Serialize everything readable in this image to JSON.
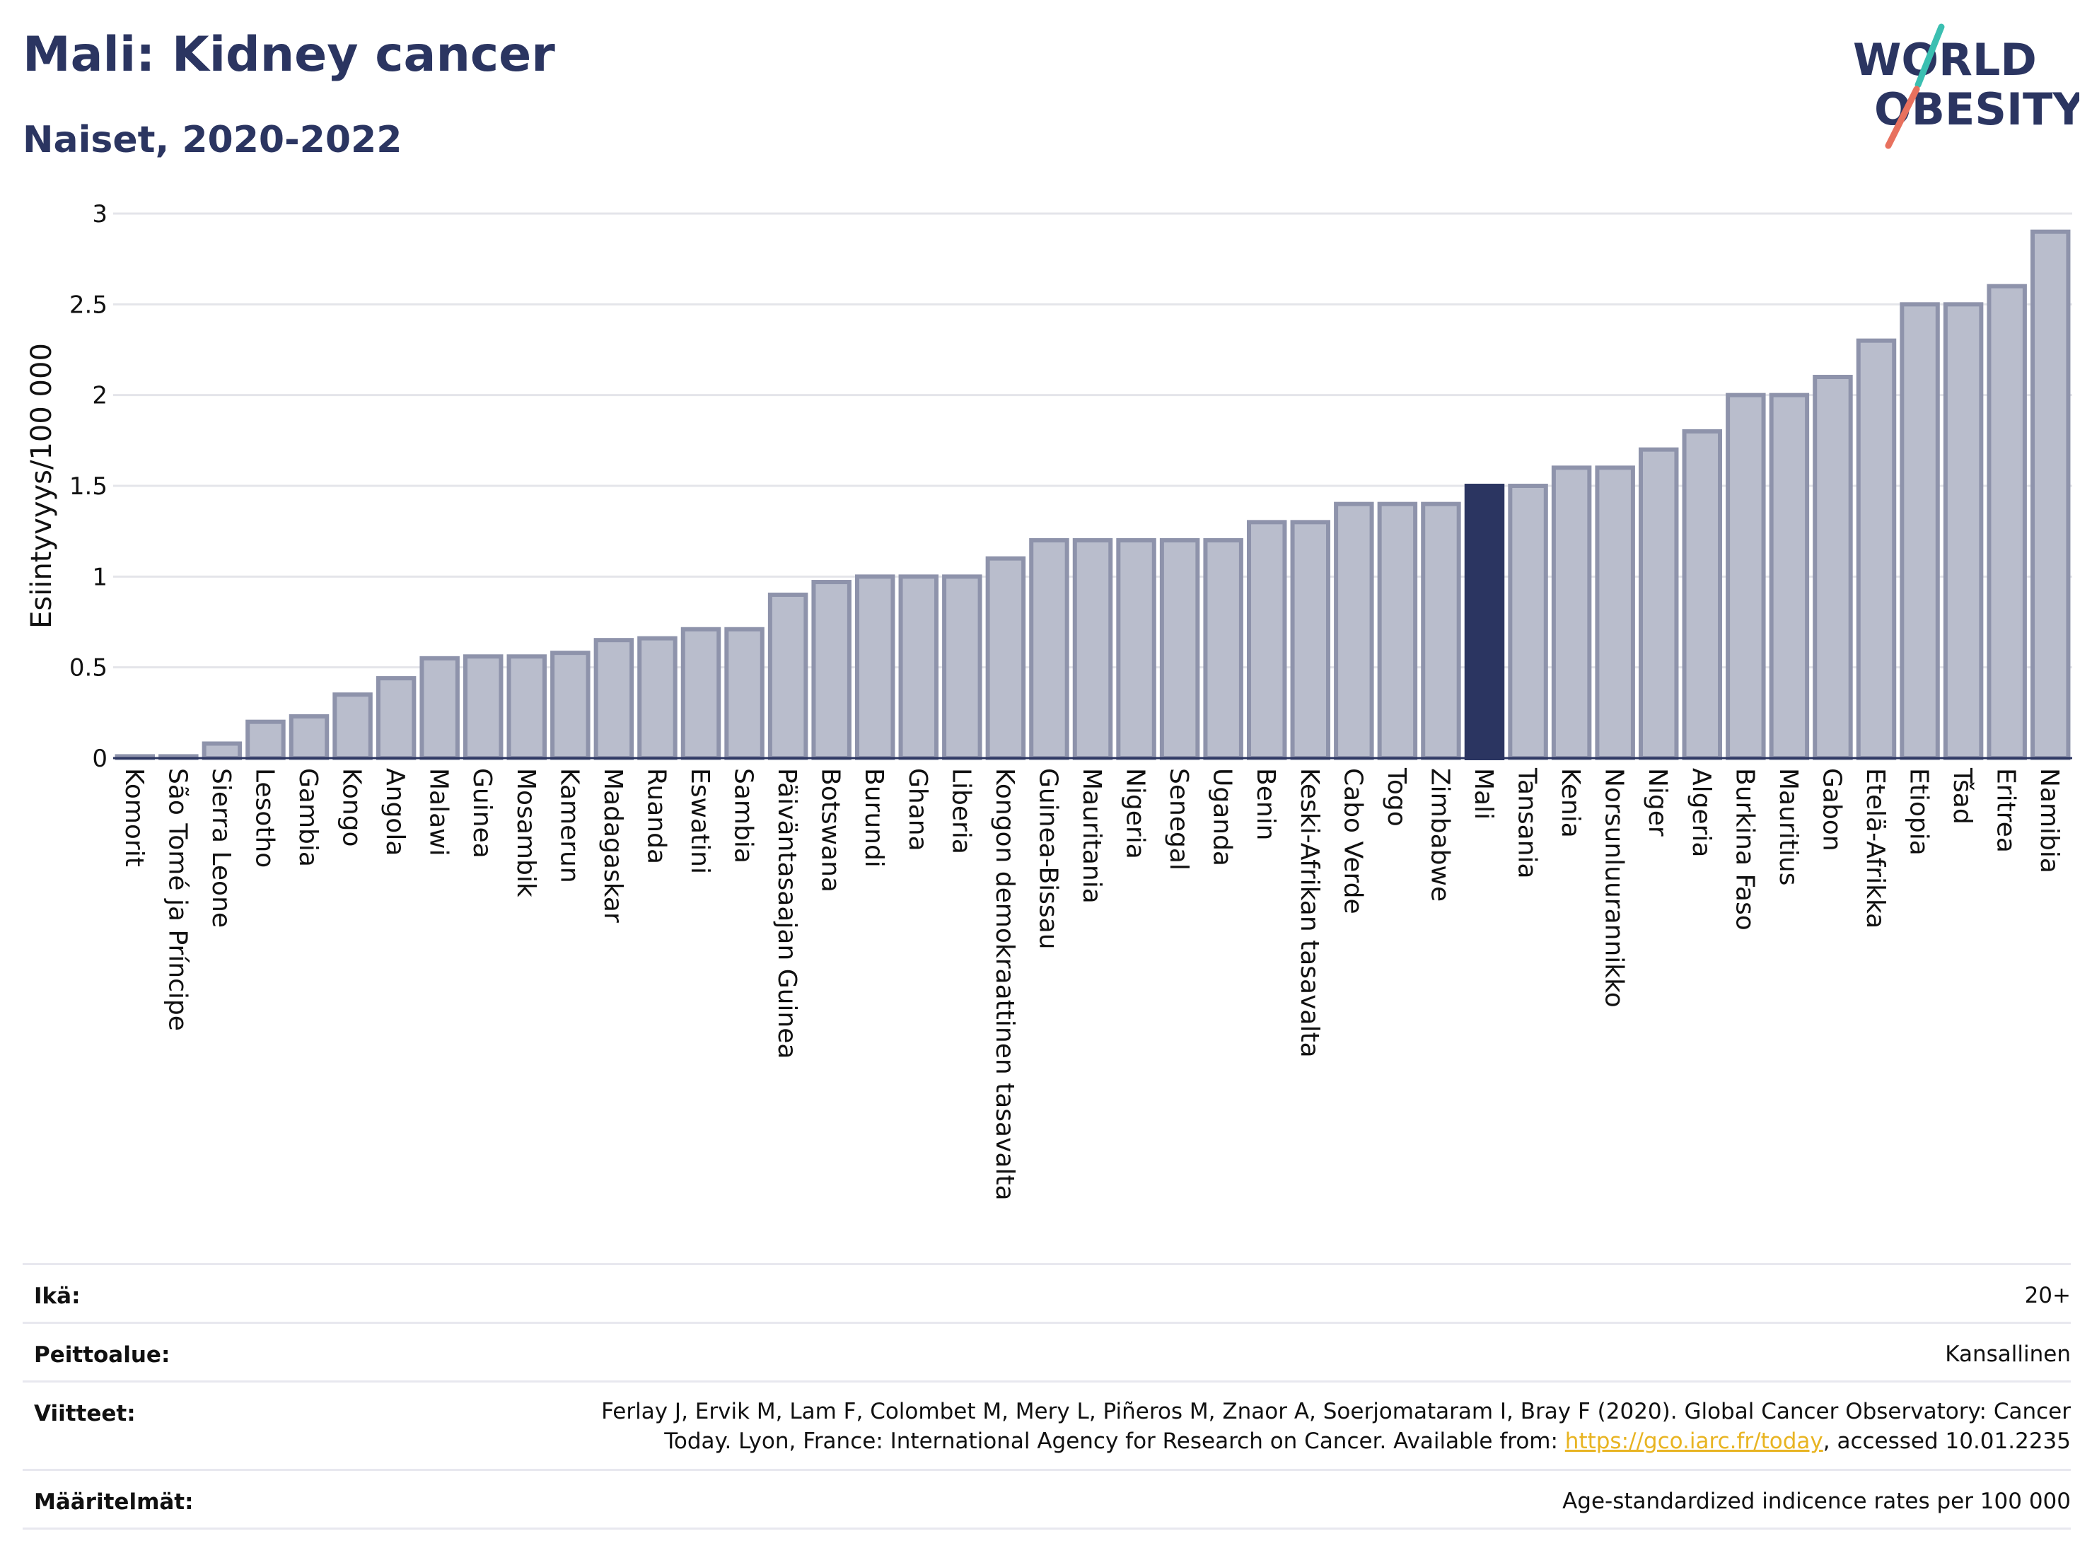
{
  "header": {
    "title": "Mali: Kidney cancer",
    "subtitle": "Naiset, 2020-2022"
  },
  "logo": {
    "line1": "WORLD",
    "line2": "OBESITY",
    "colors": {
      "text": "#2b3561",
      "slash_top": "#3bbfb1",
      "slash_bottom": "#e8715e"
    }
  },
  "chart_data": {
    "type": "bar",
    "ylabel": "Esiintyvyys/100 000",
    "ylim": [
      0,
      3
    ],
    "yticks": [
      "0",
      "0.5",
      "1",
      "1.5",
      "2",
      "2.5",
      "3"
    ],
    "grid": true,
    "highlight": "Mali",
    "colors": {
      "bar": "#b9bdcc",
      "bar_border": "#8e93ab",
      "highlight": "#2b3561"
    },
    "categories": [
      "Komorit",
      "São Tomé ja Príncipe",
      "Sierra Leone",
      "Lesotho",
      "Gambia",
      "Kongo",
      "Angola",
      "Malawi",
      "Guinea",
      "Mosambik",
      "Kamerun",
      "Madagaskar",
      "Ruanda",
      "Eswatini",
      "Sambia",
      "Päiväntasaajan Guinea",
      "Botswana",
      "Burundi",
      "Ghana",
      "Liberia",
      "Kongon demokraattinen tasavalta",
      "Guinea-Bissau",
      "Mauritania",
      "Nigeria",
      "Senegal",
      "Uganda",
      "Benin",
      "Keski-Afrikan tasavalta",
      "Cabo Verde",
      "Togo",
      "Zimbabwe",
      "Mali",
      "Tansania",
      "Kenia",
      "Norsunluurannikko",
      "Niger",
      "Algeria",
      "Burkina Faso",
      "Mauritius",
      "Gabon",
      "Etelä-Afrikka",
      "Etiopia",
      "Tšad",
      "Eritrea",
      "Namibia"
    ],
    "values": [
      0.01,
      0.01,
      0.08,
      0.2,
      0.23,
      0.35,
      0.44,
      0.55,
      0.56,
      0.56,
      0.58,
      0.65,
      0.66,
      0.71,
      0.71,
      0.9,
      0.97,
      1.0,
      1.0,
      1.0,
      1.1,
      1.2,
      1.2,
      1.2,
      1.2,
      1.2,
      1.3,
      1.3,
      1.4,
      1.4,
      1.4,
      1.5,
      1.5,
      1.6,
      1.6,
      1.7,
      1.8,
      2.0,
      2.0,
      2.1,
      2.3,
      2.5,
      2.5,
      2.6,
      2.9
    ]
  },
  "info": {
    "age_label": "Ikä:",
    "age_value": "20+",
    "coverage_label": "Peittoalue:",
    "coverage_value": "Kansallinen",
    "refs_label": "Viitteet:",
    "refs_line1": "Ferlay J, Ervik M, Lam F, Colombet M, Mery L, Piñeros M, Znaor A, Soerjomataram I, Bray F (2020). Global Cancer Observatory: Cancer",
    "refs_line2_pre": "Today. Lyon, France: International Agency for Research on Cancer. Available from: ",
    "refs_link": "https://gco.iarc.fr/today",
    "refs_line2_post": ", accessed 10.01.2235",
    "defs_label": "Määritelmät:",
    "defs_value": "Age-standardized indicence rates per 100 000"
  }
}
